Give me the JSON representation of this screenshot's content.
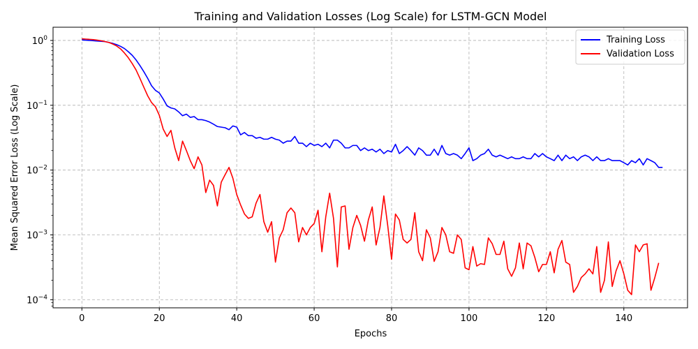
{
  "chart_data": {
    "type": "line",
    "title": "Training and Validation Losses (Log Scale) for LSTM-GCN Model",
    "xlabel": "Epochs",
    "ylabel": "Mean Squared Error Loss (Log Scale)",
    "xlim": [
      -7.45,
      156.45
    ],
    "ylim": [
      7.5e-05,
      1.6
    ],
    "yscale": "log",
    "grid": true,
    "legend_position": "top-right",
    "x_ticks": [
      0,
      20,
      40,
      60,
      80,
      100,
      120,
      140
    ],
    "x_tick_labels": [
      "0",
      "20",
      "40",
      "60",
      "80",
      "100",
      "120",
      "140"
    ],
    "y_ticks": [
      1,
      0.1,
      0.01,
      0.001,
      0.0001
    ],
    "y_tick_labels": [
      {
        "base": "10",
        "exp": "0"
      },
      {
        "base": "10",
        "exp": "−1"
      },
      {
        "base": "10",
        "exp": "−2"
      },
      {
        "base": "10",
        "exp": "−3"
      },
      {
        "base": "10",
        "exp": "−4"
      }
    ],
    "series": [
      {
        "name": "Training Loss",
        "color": "#0000ff",
        "values": [
          1.02,
          1.01,
          1.0,
          0.99,
          0.98,
          0.97,
          0.96,
          0.93,
          0.9,
          0.86,
          0.81,
          0.75,
          0.67,
          0.59,
          0.5,
          0.41,
          0.33,
          0.26,
          0.2,
          0.17,
          0.155,
          0.125,
          0.098,
          0.091,
          0.088,
          0.079,
          0.069,
          0.073,
          0.065,
          0.067,
          0.06,
          0.06,
          0.058,
          0.055,
          0.051,
          0.047,
          0.046,
          0.045,
          0.042,
          0.048,
          0.046,
          0.035,
          0.038,
          0.034,
          0.034,
          0.031,
          0.032,
          0.03,
          0.03,
          0.032,
          0.03,
          0.029,
          0.026,
          0.028,
          0.028,
          0.033,
          0.026,
          0.026,
          0.023,
          0.026,
          0.024,
          0.025,
          0.023,
          0.026,
          0.022,
          0.029,
          0.029,
          0.026,
          0.022,
          0.022,
          0.024,
          0.024,
          0.02,
          0.022,
          0.02,
          0.021,
          0.019,
          0.021,
          0.018,
          0.02,
          0.019,
          0.025,
          0.018,
          0.02,
          0.023,
          0.02,
          0.017,
          0.022,
          0.02,
          0.017,
          0.017,
          0.021,
          0.017,
          0.024,
          0.018,
          0.017,
          0.018,
          0.017,
          0.015,
          0.018,
          0.022,
          0.014,
          0.015,
          0.017,
          0.018,
          0.021,
          0.017,
          0.016,
          0.017,
          0.016,
          0.015,
          0.016,
          0.015,
          0.015,
          0.016,
          0.015,
          0.015,
          0.018,
          0.016,
          0.018,
          0.016,
          0.015,
          0.014,
          0.017,
          0.014,
          0.017,
          0.015,
          0.016,
          0.014,
          0.016,
          0.017,
          0.016,
          0.014,
          0.016,
          0.014,
          0.014,
          0.015,
          0.014,
          0.014,
          0.014,
          0.013,
          0.012,
          0.014,
          0.013,
          0.015,
          0.012,
          0.015,
          0.014,
          0.013,
          0.011,
          0.011
        ]
      },
      {
        "name": "Validation Loss",
        "color": "#ff0000",
        "values": [
          1.06,
          1.05,
          1.04,
          1.03,
          1.01,
          0.99,
          0.96,
          0.93,
          0.88,
          0.82,
          0.74,
          0.64,
          0.54,
          0.44,
          0.35,
          0.26,
          0.19,
          0.14,
          0.11,
          0.095,
          0.07,
          0.043,
          0.033,
          0.041,
          0.022,
          0.014,
          0.028,
          0.02,
          0.014,
          0.0105,
          0.016,
          0.012,
          0.0045,
          0.007,
          0.0058,
          0.0028,
          0.0065,
          0.0085,
          0.011,
          0.0075,
          0.0042,
          0.0029,
          0.0021,
          0.0018,
          0.0019,
          0.0031,
          0.0042,
          0.0016,
          0.0011,
          0.0016,
          0.00038,
          0.0009,
          0.0012,
          0.0022,
          0.0026,
          0.0022,
          0.00078,
          0.0013,
          0.001,
          0.0013,
          0.0015,
          0.0024,
          0.00055,
          0.0019,
          0.0044,
          0.0018,
          0.00032,
          0.0027,
          0.0028,
          0.0006,
          0.0013,
          0.002,
          0.0014,
          0.0008,
          0.0017,
          0.0027,
          0.0007,
          0.0013,
          0.004,
          0.0014,
          0.00042,
          0.0021,
          0.0017,
          0.00085,
          0.00075,
          0.00085,
          0.0022,
          0.00055,
          0.0004,
          0.0012,
          0.0009,
          0.00039,
          0.00055,
          0.0013,
          0.001,
          0.00055,
          0.00052,
          0.001,
          0.00085,
          0.00031,
          0.00029,
          0.00066,
          0.00033,
          0.00036,
          0.00035,
          0.0009,
          0.00073,
          0.0005,
          0.0005,
          0.0008,
          0.0003,
          0.00023,
          0.00031,
          0.00075,
          0.0003,
          0.00075,
          0.00068,
          0.00045,
          0.00027,
          0.00035,
          0.00035,
          0.00055,
          0.00026,
          0.0006,
          0.00082,
          0.00038,
          0.00035,
          0.00013,
          0.00016,
          0.00022,
          0.00025,
          0.0003,
          0.00025,
          0.00066,
          0.00013,
          0.0002,
          0.00078,
          0.00016,
          0.00028,
          0.0004,
          0.00025,
          0.00014,
          0.00012,
          0.0007,
          0.00055,
          0.0007,
          0.00073,
          0.00014,
          0.00022,
          0.00037
        ]
      }
    ]
  }
}
